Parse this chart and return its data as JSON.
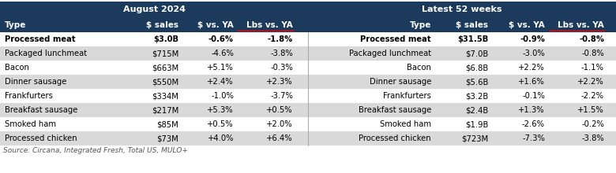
{
  "title_left": "August 2024",
  "title_right": "Latest 52 weeks",
  "header_bg": "#1b3a5c",
  "header_fg": "#ffffff",
  "row0_bg": "#ffffff",
  "row_odd_bg": "#d9d9d9",
  "row_even_bg": "#ffffff",
  "source_text": "Source: Circana, Integrated Fresh, Total US, MULO+",
  "col_headers": [
    "Type",
    "$ sales",
    "$ vs. YA",
    "Lbs vs. YA"
  ],
  "bold_row_left": [
    "Processed meat",
    "$3.0B",
    "-0.6%",
    "-1.8%"
  ],
  "bold_row_right": [
    "Processed meat",
    "$31.5B",
    "-0.9%",
    "-0.8%"
  ],
  "rows_left": [
    [
      "Packaged lunchmeat",
      "$715M",
      "-4.6%",
      "-3.8%"
    ],
    [
      "Bacon",
      "$663M",
      "+5.1%",
      "-0.3%"
    ],
    [
      "Dinner sausage",
      "$550M",
      "+2.4%",
      "+2.3%"
    ],
    [
      "Frankfurters",
      "$334M",
      "-1.0%",
      "-3.7%"
    ],
    [
      "Breakfast sausage",
      "$217M",
      "+5.3%",
      "+0.5%"
    ],
    [
      "Smoked ham",
      "$85M",
      "+0.5%",
      "+2.0%"
    ],
    [
      "Processed chicken",
      "$73M",
      "+4.0%",
      "+6.4%"
    ]
  ],
  "rows_right": [
    [
      "Packaged lunchmeat",
      "$7.0B",
      "-3.0%",
      "-0.8%"
    ],
    [
      "Bacon",
      "$6.8B",
      "+2.2%",
      "-1.1%"
    ],
    [
      "Dinner sausage",
      "$5.6B",
      "+1.6%",
      "+2.2%"
    ],
    [
      "Frankfurters",
      "$3.2B",
      "-0.1%",
      "-2.2%"
    ],
    [
      "Breakfast sausage",
      "$2.4B",
      "+1.3%",
      "+1.5%"
    ],
    [
      "Smoked ham",
      "$1.9B",
      "-2.6%",
      "-0.2%"
    ],
    [
      "Processed chicken",
      "$723M",
      "-7.3%",
      "-3.8%"
    ]
  ],
  "fig_width": 7.8,
  "fig_height": 2.2,
  "dpi": 100
}
